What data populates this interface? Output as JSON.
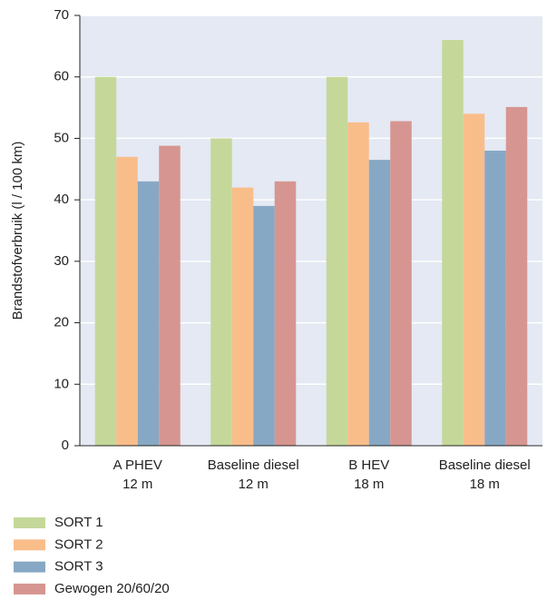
{
  "chart_data": {
    "type": "bar",
    "y_label": "Brandstofverbruik (l / 100 km)",
    "categories": [
      "A PHEV\n12 m",
      "Baseline diesel\n12 m",
      "B HEV\n18 m",
      "Baseline diesel\n18 m"
    ],
    "series": [
      {
        "name": "SORT 1",
        "color": "#c5d89a",
        "values": [
          60,
          50,
          60,
          66
        ]
      },
      {
        "name": "SORT 2",
        "color": "#f9bd8a",
        "values": [
          47,
          42,
          52.6,
          54
        ]
      },
      {
        "name": "SORT 3",
        "color": "#87a8c4",
        "values": [
          43,
          39,
          46.5,
          48
        ]
      },
      {
        "name": "Gewogen 20/60/20",
        "color": "#d69590",
        "values": [
          48.8,
          43,
          52.8,
          55.1
        ]
      }
    ],
    "ylim": [
      0,
      70
    ],
    "yticks": [
      0,
      10,
      20,
      30,
      40,
      50,
      60,
      70
    ],
    "grid": true,
    "legend": "bottom"
  }
}
